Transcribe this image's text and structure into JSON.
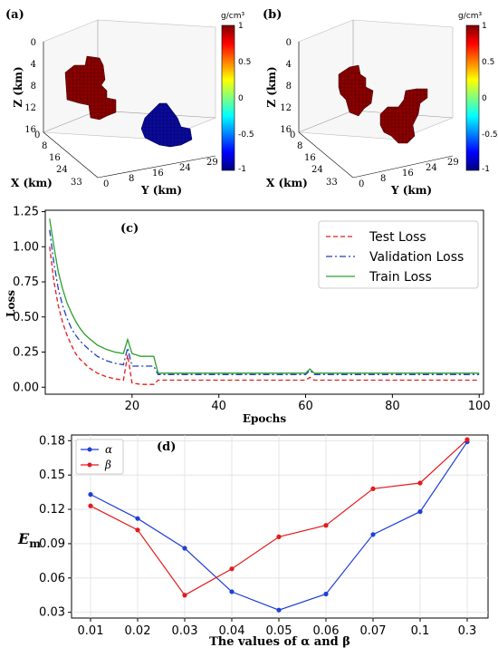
{
  "chart_data": [
    {
      "panel": "(a)",
      "type": "other",
      "xlabel": "X (km)",
      "ylabel": "Y (km)",
      "zlabel": "Z (km)",
      "x_ticks": [
        "0",
        "8",
        "16",
        "24",
        "33"
      ],
      "y_ticks": [
        "0",
        "8",
        "16",
        "24",
        "29"
      ],
      "z_ticks": [
        "0",
        "4",
        "8",
        "12",
        "16"
      ],
      "colorbar": {
        "unit": "g/cm³",
        "ticks": [
          "1",
          "0.5",
          "0",
          "-0.5",
          "-1"
        ],
        "range": [
          -1,
          1
        ]
      },
      "bodies": [
        {
          "density": 1,
          "color": "#8b0000"
        },
        {
          "density": -1,
          "color": "#00008b"
        }
      ]
    },
    {
      "panel": "(b)",
      "type": "other",
      "xlabel": "X (km)",
      "ylabel": "Y (km)",
      "zlabel": "Z (km)",
      "x_ticks": [
        "0",
        "8",
        "16",
        "24",
        "33"
      ],
      "y_ticks": [
        "0",
        "8",
        "16",
        "24",
        "29"
      ],
      "z_ticks": [
        "0",
        "4",
        "8",
        "12",
        "16"
      ],
      "colorbar": {
        "unit": "g/cm³",
        "ticks": [
          "1",
          "0.5",
          "0",
          "-0.5",
          "-1"
        ],
        "range": [
          -1,
          1
        ]
      },
      "bodies": [
        {
          "density": 1,
          "color": "#8b0000"
        },
        {
          "density": 1,
          "color": "#8b0000"
        }
      ]
    },
    {
      "panel": "(c)",
      "type": "line",
      "xlabel": "Epochs",
      "ylabel": "Loss",
      "xlim": [
        0,
        101
      ],
      "ylim": [
        -0.05,
        1.26
      ],
      "x_ticks": [
        20,
        40,
        60,
        80,
        100
      ],
      "y_ticks": [
        "0.00",
        "0.25",
        "0.50",
        "0.75",
        "1.00",
        "1.25"
      ],
      "legend": "top-right",
      "series": [
        {
          "name": "Test Loss",
          "color": "#e41a1c",
          "dash": "dashed",
          "points": [
            [
              1,
              1.0
            ],
            [
              2,
              0.75
            ],
            [
              3,
              0.58
            ],
            [
              4,
              0.46
            ],
            [
              5,
              0.37
            ],
            [
              6,
              0.3
            ],
            [
              7,
              0.24
            ],
            [
              8,
              0.2
            ],
            [
              9,
              0.17
            ],
            [
              10,
              0.14
            ],
            [
              12,
              0.1
            ],
            [
              14,
              0.075
            ],
            [
              16,
              0.06
            ],
            [
              18,
              0.05
            ],
            [
              19,
              0.23
            ],
            [
              20,
              0.03
            ],
            [
              22,
              0.02
            ],
            [
              24,
              0.02
            ],
            [
              25,
              0.02
            ],
            [
              26,
              0.05
            ],
            [
              30,
              0.05
            ],
            [
              40,
              0.05
            ],
            [
              50,
              0.05
            ],
            [
              60,
              0.05
            ],
            [
              61,
              0.07
            ],
            [
              62,
              0.05
            ],
            [
              70,
              0.05
            ],
            [
              80,
              0.05
            ],
            [
              90,
              0.05
            ],
            [
              100,
              0.05
            ]
          ]
        },
        {
          "name": "Validation Loss",
          "color": "#1f3fbf",
          "dash": "dashdot",
          "points": [
            [
              1,
              1.12
            ],
            [
              2,
              0.88
            ],
            [
              3,
              0.7
            ],
            [
              4,
              0.58
            ],
            [
              5,
              0.49
            ],
            [
              6,
              0.42
            ],
            [
              7,
              0.37
            ],
            [
              8,
              0.33
            ],
            [
              9,
              0.3
            ],
            [
              10,
              0.27
            ],
            [
              12,
              0.22
            ],
            [
              14,
              0.19
            ],
            [
              16,
              0.17
            ],
            [
              18,
              0.16
            ],
            [
              19,
              0.28
            ],
            [
              20,
              0.15
            ],
            [
              22,
              0.15
            ],
            [
              24,
              0.15
            ],
            [
              25,
              0.15
            ],
            [
              26,
              0.09
            ],
            [
              30,
              0.09
            ],
            [
              40,
              0.09
            ],
            [
              50,
              0.09
            ],
            [
              60,
              0.09
            ],
            [
              61,
              0.12
            ],
            [
              62,
              0.09
            ],
            [
              70,
              0.09
            ],
            [
              80,
              0.09
            ],
            [
              90,
              0.09
            ],
            [
              100,
              0.09
            ]
          ]
        },
        {
          "name": "Train Loss",
          "color": "#2ca02c",
          "dash": "solid",
          "points": [
            [
              1,
              1.2
            ],
            [
              2,
              1.0
            ],
            [
              3,
              0.82
            ],
            [
              4,
              0.7
            ],
            [
              5,
              0.6
            ],
            [
              6,
              0.53
            ],
            [
              7,
              0.47
            ],
            [
              8,
              0.42
            ],
            [
              9,
              0.38
            ],
            [
              10,
              0.35
            ],
            [
              12,
              0.3
            ],
            [
              14,
              0.27
            ],
            [
              16,
              0.25
            ],
            [
              18,
              0.24
            ],
            [
              19,
              0.34
            ],
            [
              20,
              0.24
            ],
            [
              22,
              0.22
            ],
            [
              24,
              0.22
            ],
            [
              25,
              0.22
            ],
            [
              26,
              0.1
            ],
            [
              30,
              0.1
            ],
            [
              40,
              0.1
            ],
            [
              50,
              0.1
            ],
            [
              60,
              0.1
            ],
            [
              61,
              0.13
            ],
            [
              62,
              0.1
            ],
            [
              70,
              0.1
            ],
            [
              80,
              0.1
            ],
            [
              90,
              0.1
            ],
            [
              100,
              0.1
            ]
          ]
        }
      ]
    },
    {
      "panel": "(d)",
      "type": "line",
      "xlabel": "The values of α and β",
      "ylabel": "E",
      "ylabel_sub": "m",
      "categories": [
        "0.01",
        "0.02",
        "0.03",
        "0.04",
        "0.05",
        "0.06",
        "0.07",
        "0.1",
        "0.3"
      ],
      "ylim": [
        0.025,
        0.185
      ],
      "y_ticks": [
        "0.03",
        "0.06",
        "0.09",
        "0.12",
        "0.15",
        "0.18"
      ],
      "legend": "top-left",
      "grid": true,
      "series": [
        {
          "name": "α",
          "color": "#1f3fd6",
          "values": [
            0.133,
            0.112,
            0.086,
            0.048,
            0.032,
            0.046,
            0.098,
            0.118,
            0.179
          ]
        },
        {
          "name": "β",
          "color": "#e41a1c",
          "values": [
            0.123,
            0.102,
            0.045,
            0.068,
            0.096,
            0.106,
            0.138,
            0.143,
            0.181
          ]
        }
      ]
    }
  ]
}
